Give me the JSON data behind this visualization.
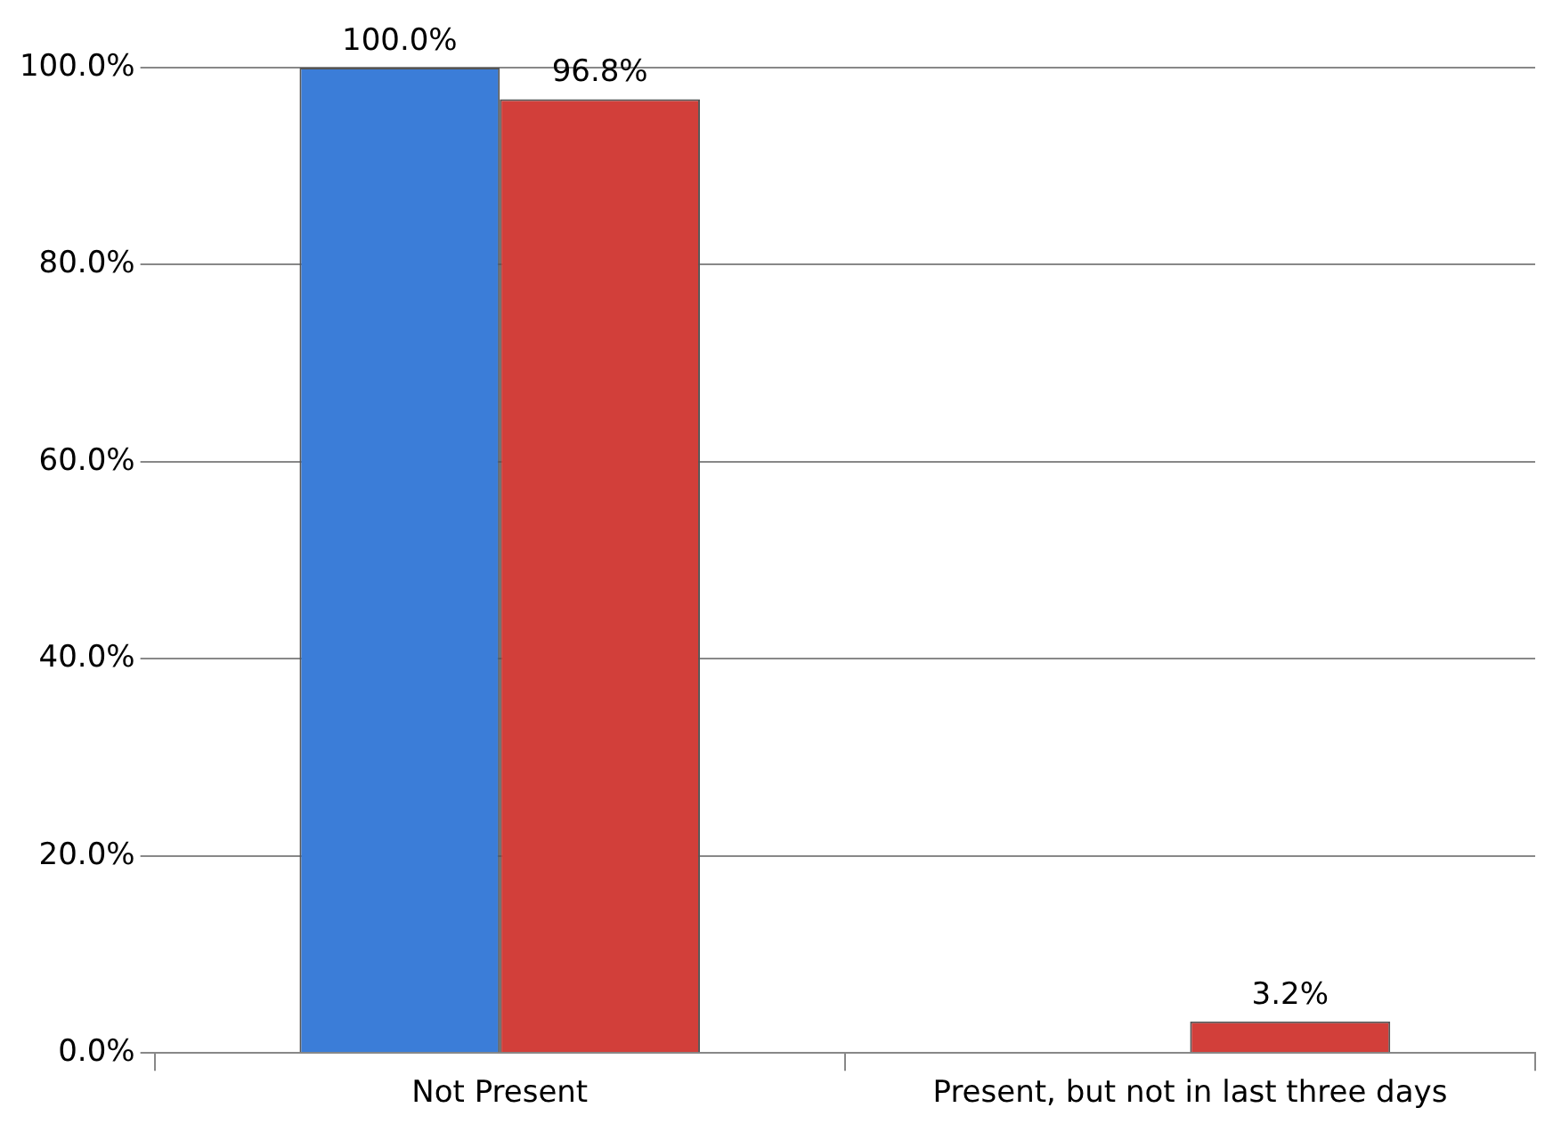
{
  "chart_data": {
    "type": "bar",
    "categories": [
      "Not Present",
      "Present, but not in last three days"
    ],
    "series": [
      {
        "color": "#3b7dd8",
        "values": [
          100.0,
          null
        ],
        "value_labels": [
          "100.0%",
          null
        ]
      },
      {
        "color": "#d23f3a",
        "values": [
          96.8,
          3.2
        ],
        "value_labels": [
          "96.8%",
          "3.2%"
        ]
      }
    ],
    "ylim": [
      0,
      100
    ],
    "yticks": [
      {
        "value": 0,
        "label": "0.0%"
      },
      {
        "value": 20,
        "label": "20.0%"
      },
      {
        "value": 40,
        "label": "40.0%"
      },
      {
        "value": 60,
        "label": "60.0%"
      },
      {
        "value": 80,
        "label": "80.0%"
      },
      {
        "value": 100,
        "label": "100.0%"
      }
    ],
    "grid": "y",
    "legend": false
  }
}
